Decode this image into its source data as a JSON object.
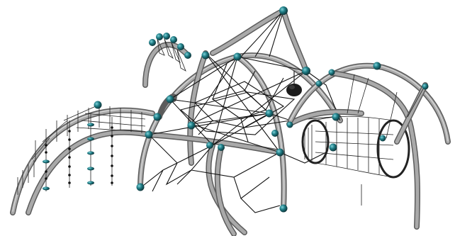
{
  "scene": {
    "subject": "playground-climbing-structure",
    "colors": {
      "background": "#ffffff",
      "tube_dark": "#5c5c5c",
      "tube_mid": "#a9a9a9",
      "tube_highlight": "#d6d6d6",
      "rope": "#111111",
      "connector_teal": "#1f7d86",
      "connector_dark": "#0c2f33"
    },
    "components": [
      "left-ladder-arch",
      "hanging-rope-ladders",
      "main-dome-arch",
      "central-spider-net",
      "tunnel-net",
      "ring-ladder-arch",
      "right-arch",
      "swing-disc-seat"
    ]
  }
}
